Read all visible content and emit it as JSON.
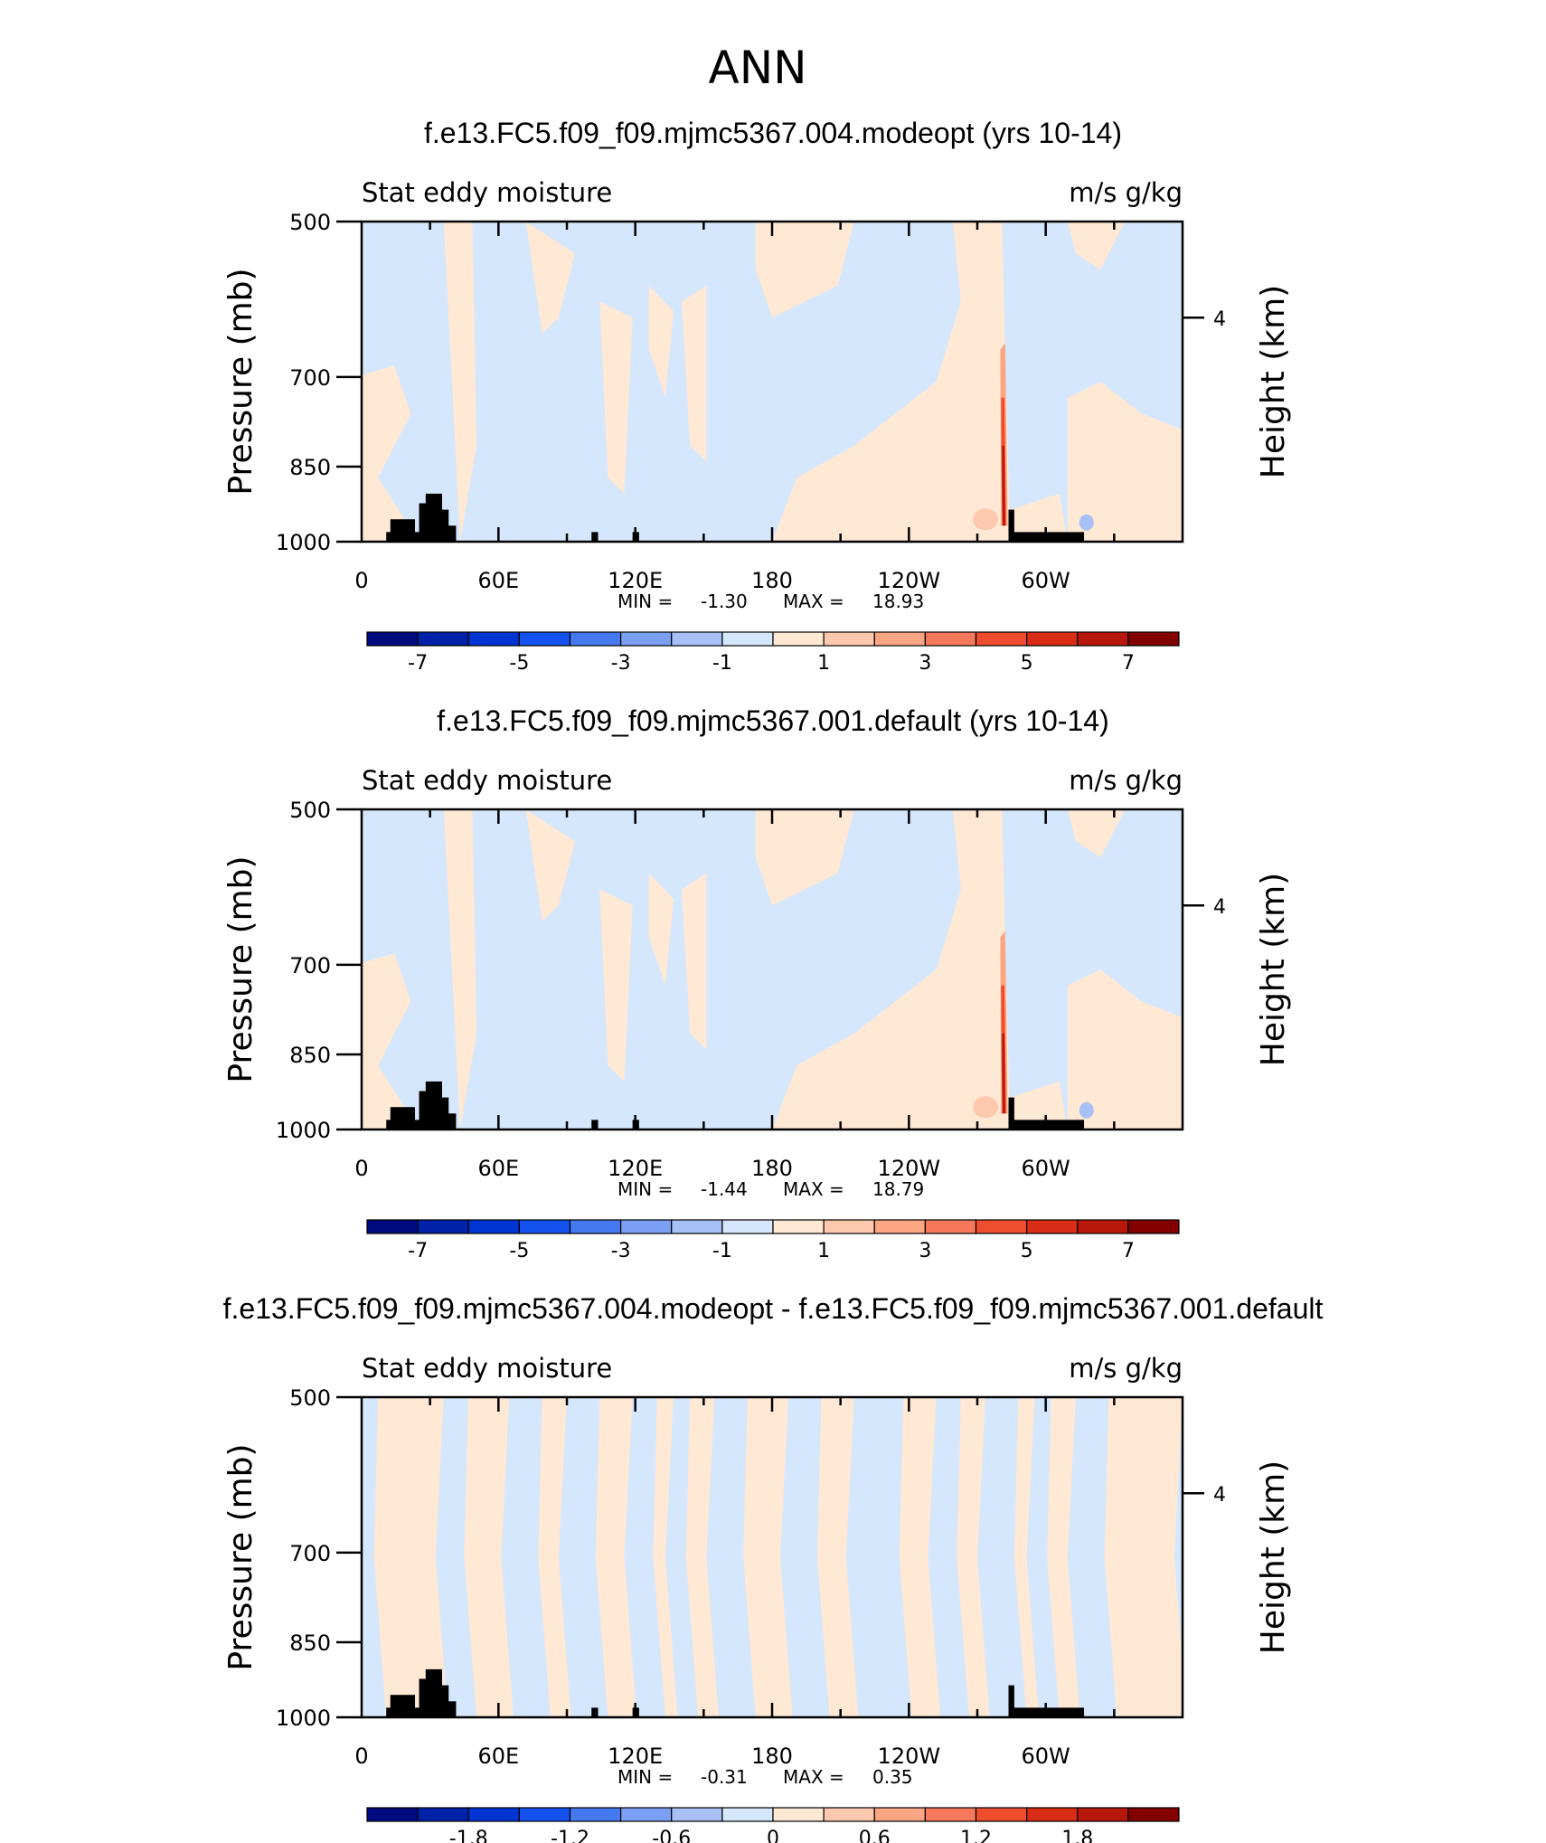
{
  "figure": {
    "title": "ANN"
  },
  "colors": {
    "land": "#000000",
    "frame": "#000000",
    "colorbar_fills": [
      "#000b80",
      "#0022a8",
      "#0035d4",
      "#1452f0",
      "#4479ef",
      "#7a9ff3",
      "#a7c1f7",
      "#d5e7fc",
      "#ffe8d4",
      "#fdc8ad",
      "#fba583",
      "#f6795b",
      "#ee4e2e",
      "#d82c14",
      "#b8170c",
      "#820000"
    ]
  },
  "chart_data": [
    {
      "type": "heatmap",
      "title": "f.e13.FC5.f09_f09.mjmc5367.004.modeopt (yrs 10-14)",
      "left_label": "Stat eddy moisture",
      "right_label": "m/s g/kg",
      "ylabel": "Pressure (mb)",
      "ylabel_right": "Height (km)",
      "y_ticks": [
        "500",
        "700",
        "850",
        "1000"
      ],
      "y_right_ticks": [
        "4"
      ],
      "x_ticks": [
        "0",
        "60E",
        "120E",
        "180",
        "120W",
        "60W"
      ],
      "min_label": "MIN =",
      "min_value": "-1.30",
      "max_label": "MAX =",
      "max_value": "18.93",
      "colorbar_labels": [
        "-7",
        "-5",
        "-3",
        "-1",
        "1",
        "3",
        "5",
        "7"
      ]
    },
    {
      "type": "heatmap",
      "title": "f.e13.FC5.f09_f09.mjmc5367.001.default (yrs 10-14)",
      "left_label": "Stat eddy moisture",
      "right_label": "m/s g/kg",
      "ylabel": "Pressure (mb)",
      "ylabel_right": "Height (km)",
      "y_ticks": [
        "500",
        "700",
        "850",
        "1000"
      ],
      "y_right_ticks": [
        "4"
      ],
      "x_ticks": [
        "0",
        "60E",
        "120E",
        "180",
        "120W",
        "60W"
      ],
      "min_label": "MIN =",
      "min_value": "-1.44",
      "max_label": "MAX =",
      "max_value": "18.79",
      "colorbar_labels": [
        "-7",
        "-5",
        "-3",
        "-1",
        "1",
        "3",
        "5",
        "7"
      ]
    },
    {
      "type": "heatmap",
      "title": "f.e13.FC5.f09_f09.mjmc5367.004.modeopt - f.e13.FC5.f09_f09.mjmc5367.001.default",
      "left_label": "Stat eddy moisture",
      "right_label": "m/s g/kg",
      "ylabel": "Pressure (mb)",
      "ylabel_right": "Height (km)",
      "y_ticks": [
        "500",
        "700",
        "850",
        "1000"
      ],
      "y_right_ticks": [
        "4"
      ],
      "x_ticks": [
        "0",
        "60E",
        "120E",
        "180",
        "120W",
        "60W"
      ],
      "min_label": "MIN =",
      "min_value": "-0.31",
      "max_label": "MAX =",
      "max_value": "0.35",
      "colorbar_labels": [
        "-1.8",
        "-1.2",
        "-0.6",
        "0",
        "0.6",
        "1.2",
        "1.8"
      ]
    }
  ]
}
